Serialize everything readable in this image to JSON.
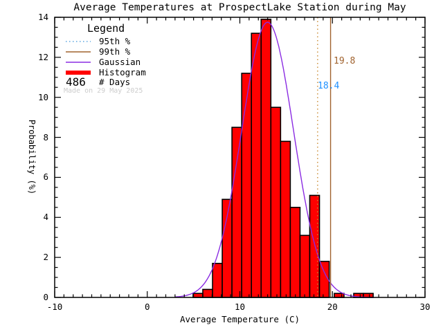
{
  "title": "Average Temperatures at ProspectLake Station during May",
  "watermark": "Made on 29 May 2025",
  "legend": {
    "header": "Legend",
    "items": [
      {
        "label": "95th %",
        "style": "dotted",
        "color": "#5aa5e0"
      },
      {
        "label": "99th %",
        "style": "solid",
        "color": "#a0622d"
      },
      {
        "label": "Gaussian",
        "style": "solid",
        "color": "#8a2be2"
      },
      {
        "label": "Histogram",
        "style": "thick",
        "color": "#ff0000"
      }
    ],
    "days_value": "486",
    "days_label": "# Days"
  },
  "annotations": {
    "p95_label": "18.4",
    "p99_label": "19.8"
  },
  "colors": {
    "histogram_fill": "#ff0000",
    "histogram_edge": "#000000",
    "gaussian": "#8a2be2",
    "p95_line": "#c8882e",
    "p99_line": "#a0622d",
    "p95_text": "#1e90ff",
    "p99_text": "#a0622d",
    "axis": "#000000",
    "watermark": "#cccccc"
  },
  "axes": {
    "x": {
      "label": "Average Temperature (C)",
      "ticks": [
        {
          "v": -10,
          "label": "-10"
        },
        {
          "v": 0,
          "label": "0"
        },
        {
          "v": 10,
          "label": "10"
        },
        {
          "v": 20,
          "label": "20"
        },
        {
          "v": 30,
          "label": "30"
        }
      ],
      "minor_step": 1
    },
    "y": {
      "label": "Probability (%)",
      "ticks": [
        {
          "v": 0,
          "label": "0"
        },
        {
          "v": 2,
          "label": "2"
        },
        {
          "v": 4,
          "label": "4"
        },
        {
          "v": 6,
          "label": "6"
        },
        {
          "v": 8,
          "label": "8"
        },
        {
          "v": 10,
          "label": "10"
        },
        {
          "v": 12,
          "label": "12"
        },
        {
          "v": 14,
          "label": "14"
        }
      ],
      "minor_step": 0.5
    }
  },
  "chart_data": {
    "type": "bar",
    "subtype": "histogram-with-gaussian-fit",
    "title": "Average Temperatures at ProspectLake Station during May",
    "xlabel": "Average Temperature (C)",
    "ylabel": "Probability (%)",
    "xlim": [
      -10,
      30
    ],
    "ylim": [
      0,
      14
    ],
    "grid": false,
    "legend_position": "upper-left",
    "n_days": 486,
    "percentiles": {
      "p95": 18.4,
      "p99": 19.8
    },
    "gaussian": {
      "mean": 13.0,
      "sigma": 2.8,
      "amplitude": 13.75,
      "draw_range": [
        3.0,
        24.6
      ]
    },
    "histogram_bins": [
      {
        "start": 4.95,
        "end": 6.0,
        "p": 0.2
      },
      {
        "start": 6.0,
        "end": 7.05,
        "p": 0.4
      },
      {
        "start": 7.05,
        "end": 8.1,
        "p": 1.7
      },
      {
        "start": 8.1,
        "end": 9.15,
        "p": 4.9
      },
      {
        "start": 9.15,
        "end": 10.2,
        "p": 8.5
      },
      {
        "start": 10.2,
        "end": 11.25,
        "p": 11.2
      },
      {
        "start": 11.25,
        "end": 12.3,
        "p": 13.2
      },
      {
        "start": 12.3,
        "end": 13.35,
        "p": 13.9
      },
      {
        "start": 13.35,
        "end": 14.4,
        "p": 9.5
      },
      {
        "start": 14.4,
        "end": 15.45,
        "p": 7.8
      },
      {
        "start": 15.45,
        "end": 16.5,
        "p": 4.5
      },
      {
        "start": 16.5,
        "end": 17.55,
        "p": 3.1
      },
      {
        "start": 17.55,
        "end": 18.6,
        "p": 5.1
      },
      {
        "start": 18.6,
        "end": 19.65,
        "p": 1.8
      },
      {
        "start": 20.2,
        "end": 21.25,
        "p": 0.2
      },
      {
        "start": 22.3,
        "end": 23.35,
        "p": 0.2
      },
      {
        "start": 23.35,
        "end": 24.4,
        "p": 0.2
      }
    ]
  }
}
